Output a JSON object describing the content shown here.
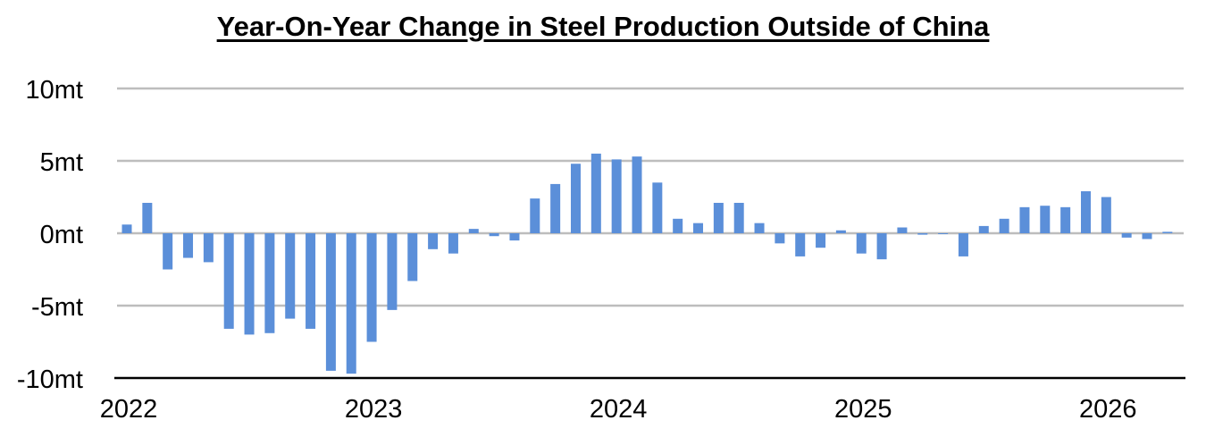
{
  "chart_data": {
    "type": "bar",
    "title": "Year-On-Year Change in Steel Production Outside of China",
    "xlabel": "",
    "ylabel": "",
    "ylim": [
      -10,
      10
    ],
    "yticks": [
      {
        "value": 10,
        "label": "10mt"
      },
      {
        "value": 5,
        "label": "5mt"
      },
      {
        "value": 0,
        "label": "0mt"
      },
      {
        "value": -5,
        "label": "-5mt"
      },
      {
        "value": -10,
        "label": "-10mt"
      }
    ],
    "xticks": [
      {
        "index": 0,
        "label": "2022"
      },
      {
        "index": 12,
        "label": "2023"
      },
      {
        "index": 24,
        "label": "2024"
      },
      {
        "index": 36,
        "label": "2025"
      },
      {
        "index": 48,
        "label": "2026"
      }
    ],
    "grid": true,
    "bar_color": "#5b8fd9",
    "values": [
      0.6,
      2.1,
      -2.5,
      -1.7,
      -2.0,
      -6.6,
      -7.0,
      -6.9,
      -5.9,
      -6.6,
      -9.5,
      -9.7,
      -7.5,
      -5.3,
      -3.3,
      -1.1,
      -1.4,
      0.3,
      -0.2,
      -0.5,
      2.4,
      3.4,
      4.8,
      5.5,
      5.1,
      5.3,
      3.5,
      1.0,
      0.7,
      2.1,
      2.1,
      0.7,
      -0.7,
      -1.6,
      -1.0,
      0.2,
      -1.4,
      -1.8,
      0.4,
      -0.1,
      0.0,
      -1.6,
      0.5,
      1.0,
      1.8,
      1.9,
      1.8,
      2.9,
      2.5,
      -0.3,
      -0.4,
      0.1
    ]
  }
}
